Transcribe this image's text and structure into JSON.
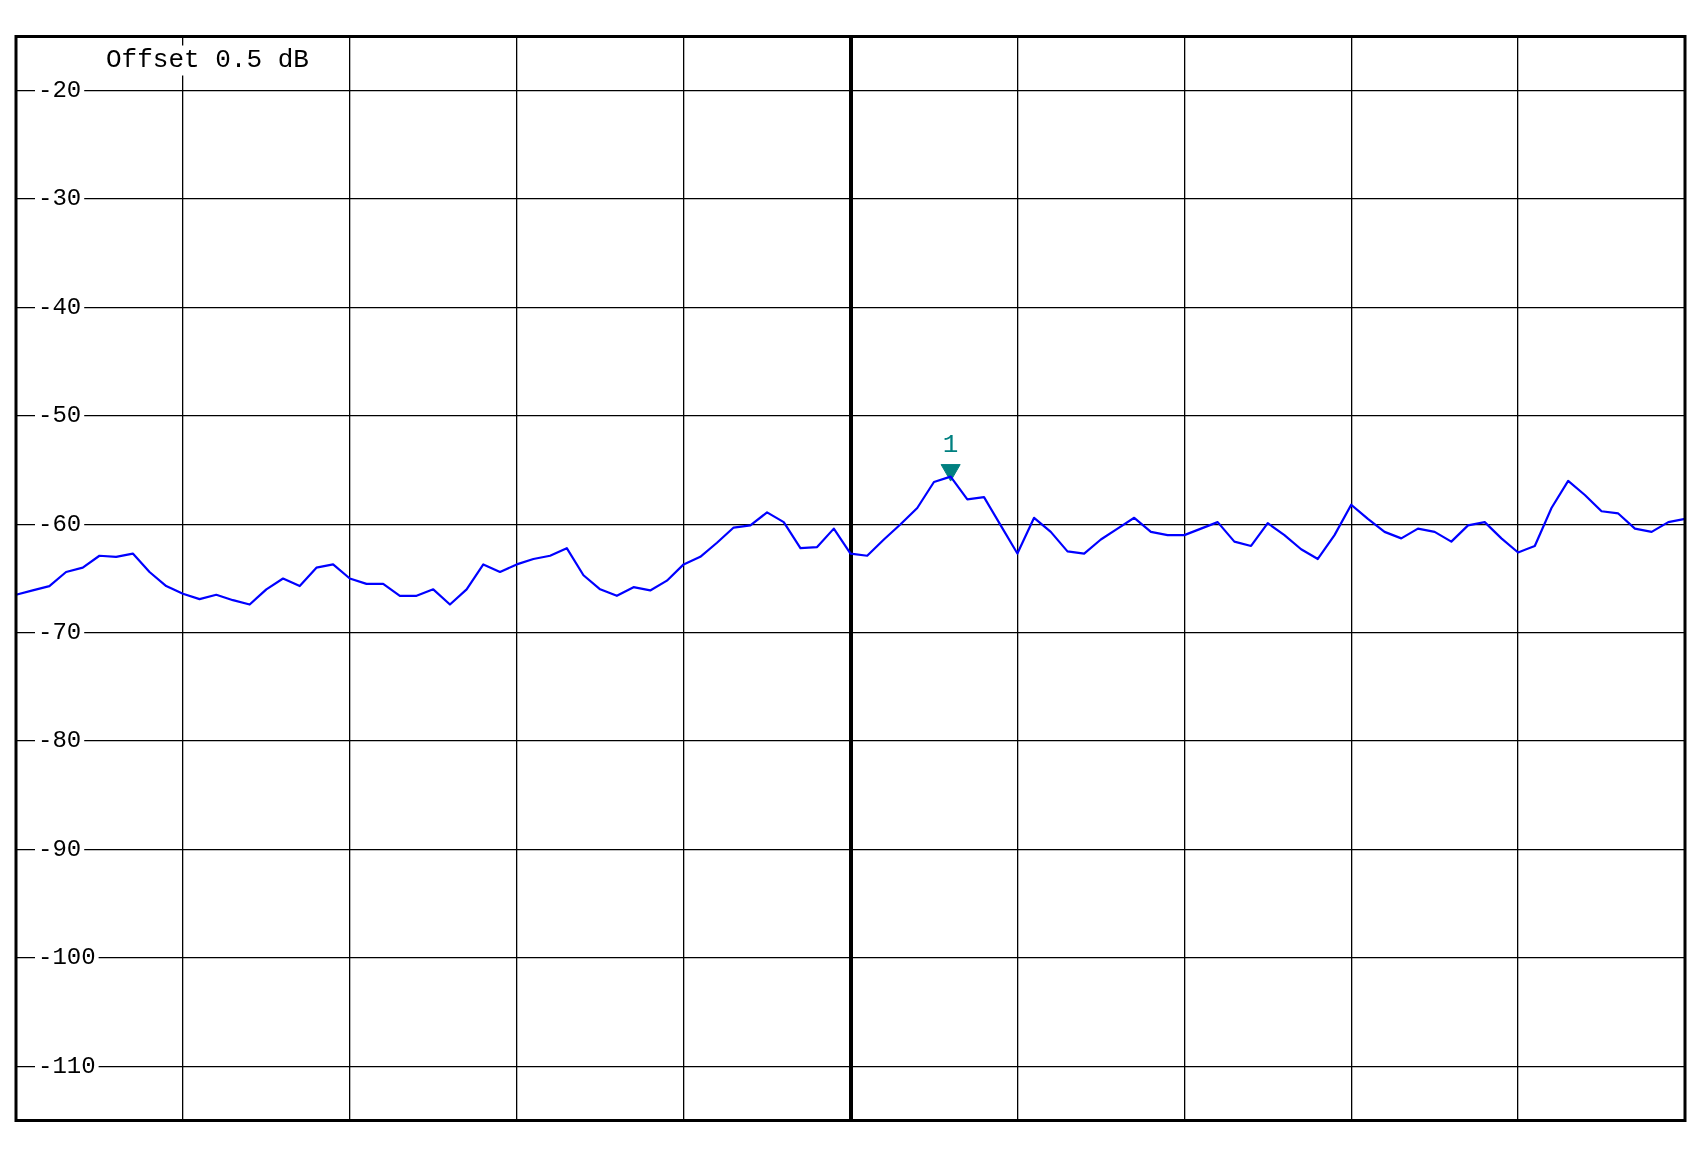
{
  "chart_data": {
    "type": "line",
    "categories": [
      null,
      null,
      null,
      null,
      null,
      null,
      null,
      null,
      null,
      null,
      null,
      null,
      null,
      null,
      null,
      null,
      null,
      null,
      null,
      null,
      null,
      null,
      null,
      null,
      null,
      null,
      null,
      null,
      null,
      null,
      null,
      null,
      null,
      null,
      null,
      null,
      null,
      null,
      null,
      null,
      null,
      null,
      null,
      null,
      null,
      null,
      null,
      null,
      null,
      null,
      null,
      null,
      null,
      null,
      null,
      null,
      null,
      null,
      null,
      null,
      null,
      null,
      null,
      null,
      null,
      null,
      null,
      null,
      null,
      null,
      null,
      null,
      null,
      null,
      null,
      null,
      null,
      null,
      null,
      null,
      null,
      null,
      null,
      null,
      null,
      null,
      null,
      null,
      null,
      null,
      null,
      null,
      null,
      null,
      null,
      null,
      null,
      null,
      null,
      null,
      null
    ],
    "series": [
      {
        "color": "#0000ff",
        "values": [
          -66.5,
          -66.1,
          -65.7,
          -64.4,
          -64,
          -62.9,
          -63,
          -62.7,
          -64.4,
          -65.7,
          -66.4,
          -66.9,
          -66.5,
          -67,
          -67.4,
          -66,
          -65,
          -65.7,
          -64,
          -63.7,
          -65,
          -65.5,
          -65.5,
          -66.6,
          -66.6,
          -66,
          -67.4,
          -66,
          -63.7,
          -64.4,
          -63.7,
          -63.2,
          -62.9,
          -62.2,
          -64.7,
          -66,
          -66.6,
          -65.8,
          -66.1,
          -65.2,
          -63.7,
          -63,
          -61.7,
          -60.3,
          -60.1,
          -58.9,
          -59.8,
          -62.2,
          -62.1,
          -60.4,
          -62.7,
          -62.9,
          -61.4,
          -60,
          -58.5,
          -56.1,
          -55.6,
          -57.7,
          -57.5,
          -60.1,
          -62.7,
          -59.4,
          -60.7,
          -62.5,
          -62.7,
          -61.4,
          -60.4,
          -59.4,
          -60.7,
          -61,
          -61,
          -60.4,
          -59.8,
          -61.6,
          -62,
          -59.9,
          -61,
          -62.3,
          -63.2,
          -61,
          -58.2,
          -59.5,
          -60.7,
          -61.3,
          -60.4,
          -60.7,
          -61.6,
          -60.1,
          -59.8,
          -61.3,
          -62.6,
          -62,
          -58.5,
          -56,
          -57.3,
          -58.8,
          -59,
          -60.4,
          -60.7,
          -59.8,
          -59.5
        ]
      },
      {
        "type": "scatter",
        "name": "1",
        "color": "#008080",
        "marker": "triangle",
        "values": [
          null,
          null,
          null,
          null,
          null,
          null,
          null,
          null,
          null,
          null,
          null,
          null,
          null,
          null,
          null,
          null,
          null,
          null,
          null,
          null,
          null,
          null,
          null,
          null,
          null,
          null,
          null,
          null,
          null,
          null,
          null,
          null,
          null,
          null,
          null,
          null,
          null,
          null,
          null,
          null,
          null,
          null,
          null,
          null,
          null,
          null,
          null,
          null,
          null,
          null,
          null,
          null,
          null,
          null,
          null,
          null,
          -55,
          null,
          null,
          null,
          null,
          null,
          null,
          null,
          null,
          null,
          null,
          null,
          null,
          null,
          null,
          null,
          null,
          null,
          null,
          null,
          null,
          null,
          null,
          null,
          null,
          null,
          null,
          null,
          null,
          null,
          null,
          null,
          null,
          null,
          null,
          null,
          null,
          null,
          null,
          null,
          null,
          null,
          null,
          null,
          null
        ]
      }
    ],
    "ylim": [
      -115,
      -15
    ],
    "yticks": [
      -20,
      -30,
      -40,
      -50,
      -60,
      -70,
      -80,
      -90,
      -100,
      -110
    ],
    "grid": true,
    "marker": "none",
    "line_style": "solid",
    "annotations": [
      "Offset 0.5 dB"
    ]
  }
}
